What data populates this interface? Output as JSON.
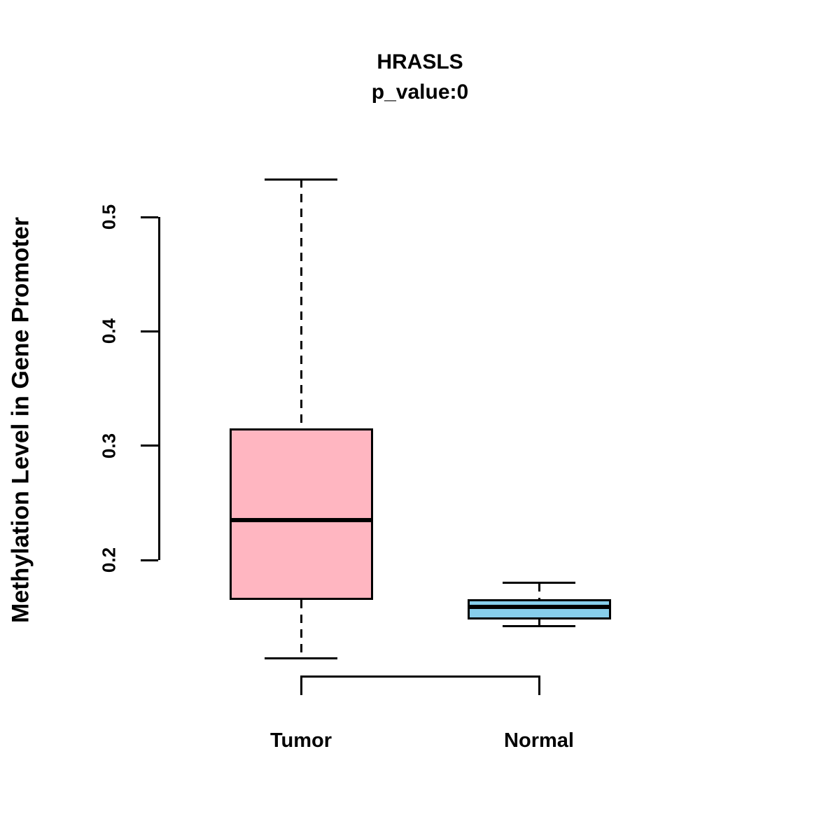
{
  "chart_data": {
    "type": "boxplot",
    "title": "HRASLS",
    "subtitle": "p_value:0",
    "ylabel": "Methylation Level in Gene Promoter",
    "xlabel": "",
    "yticks": [
      0.2,
      0.3,
      0.4,
      0.5
    ],
    "ylim": [
      0.11,
      0.535
    ],
    "grid": false,
    "legend": "none",
    "categories": [
      "Tumor",
      "Normal"
    ],
    "groups": [
      {
        "label": "Tumor",
        "color": "#FFB6C1",
        "stats": {
          "lower_whisker": 0.114,
          "q1": 0.165,
          "median": 0.235,
          "q3": 0.315,
          "upper_whisker": 0.533
        }
      },
      {
        "label": "Normal",
        "color": "#87CEEB",
        "stats": {
          "lower_whisker": 0.142,
          "q1": 0.148,
          "median": 0.159,
          "q3": 0.166,
          "upper_whisker": 0.18
        }
      }
    ]
  }
}
